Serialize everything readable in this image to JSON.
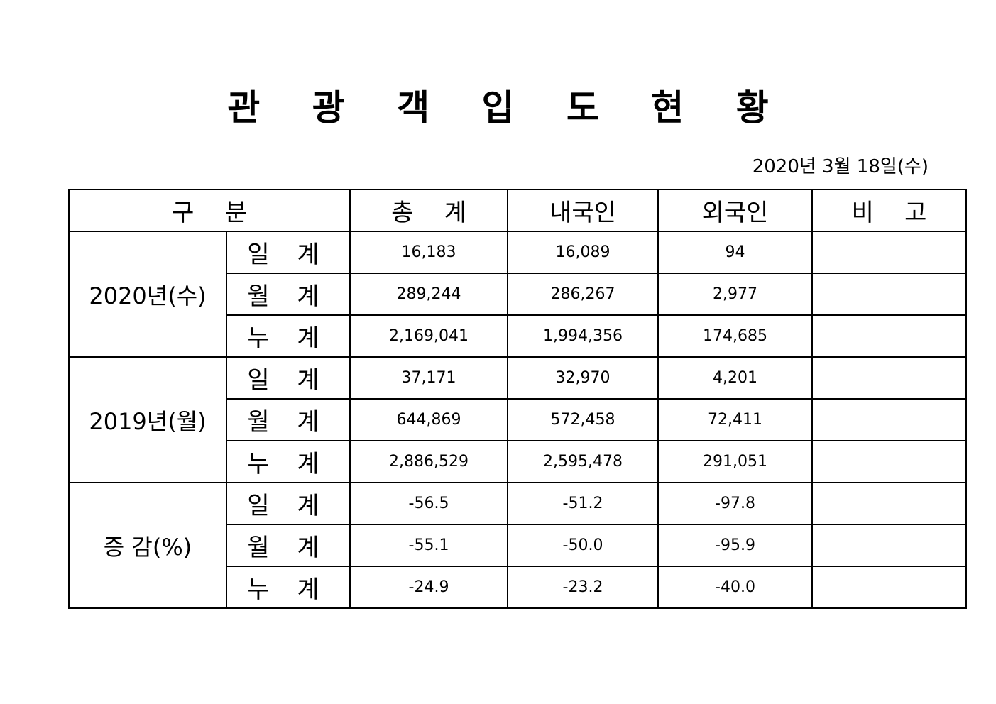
{
  "title": "관 광 객 입 도 현 황",
  "date": "2020년  3월  18일(수)",
  "headers": {
    "category": "구    분",
    "total": "총    계",
    "domestic": "내국인",
    "foreign": "외국인",
    "note": "비    고"
  },
  "groups": [
    {
      "label": "2020년(수)",
      "rows": [
        {
          "label": "일 계",
          "total": "16,183",
          "domestic": "16,089",
          "foreign": "94",
          "note": ""
        },
        {
          "label": "월 계",
          "total": "289,244",
          "domestic": "286,267",
          "foreign": "2,977",
          "note": ""
        },
        {
          "label": "누 계",
          "total": "2,169,041",
          "domestic": "1,994,356",
          "foreign": "174,685",
          "note": ""
        }
      ]
    },
    {
      "label": "2019년(월)",
      "rows": [
        {
          "label": "일 계",
          "total": "37,171",
          "domestic": "32,970",
          "foreign": "4,201",
          "note": ""
        },
        {
          "label": "월 계",
          "total": "644,869",
          "domestic": "572,458",
          "foreign": "72,411",
          "note": ""
        },
        {
          "label": "누 계",
          "total": "2,886,529",
          "domestic": "2,595,478",
          "foreign": "291,051",
          "note": ""
        }
      ]
    },
    {
      "label": "증 감(%)",
      "rows": [
        {
          "label": "일 계",
          "total": "-56.5",
          "domestic": "-51.2",
          "foreign": "-97.8",
          "note": ""
        },
        {
          "label": "월 계",
          "total": "-55.1",
          "domestic": "-50.0",
          "foreign": "-95.9",
          "note": ""
        },
        {
          "label": "누 계",
          "total": "-24.9",
          "domestic": "-23.2",
          "foreign": "-40.0",
          "note": ""
        }
      ]
    }
  ]
}
